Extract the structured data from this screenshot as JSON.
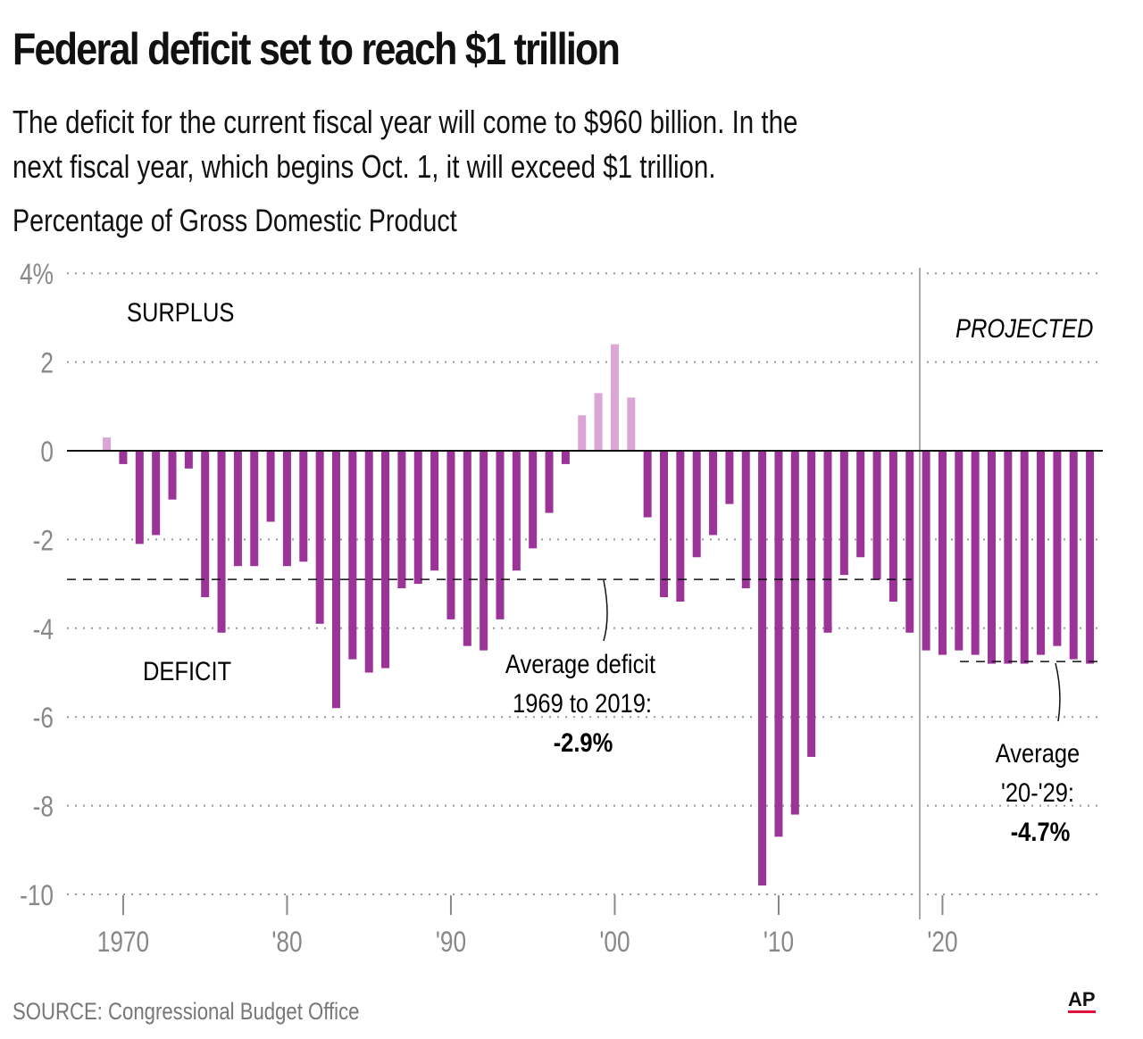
{
  "header": {
    "title": "Federal deficit set to reach $1 trillion",
    "subtitle": "The deficit for the current fiscal year will come to $960 billion. In the next fiscal year, which begins Oct. 1, it will exceed $1 trillion.",
    "unit_label": "Percentage of Gross Domestic Product"
  },
  "footer": {
    "source": "SOURCE: Congressional Budget Office",
    "logo": "AP"
  },
  "chart_data": {
    "type": "bar",
    "title": "Federal deficit set to reach $1 trillion",
    "ylabel": "Percentage of Gross Domestic Product",
    "ylim": [
      -10,
      4
    ],
    "yticks": [
      4,
      2,
      0,
      -2,
      -4,
      -6,
      -8,
      -10
    ],
    "ytick_labels": [
      "4%",
      "2",
      "0",
      "-2",
      "-4",
      "-6",
      "-8",
      "-10"
    ],
    "xticks": [
      1970,
      1980,
      1990,
      2000,
      2010,
      2020
    ],
    "xtick_labels": [
      "1970",
      "'80",
      "'90",
      "'00",
      "'10",
      "'20"
    ],
    "grid": true,
    "projected_from": 2019,
    "colors": {
      "deficit": "#9b3399",
      "surplus": "#dba6d6",
      "axis": "#111111",
      "grid": "#999999",
      "divider": "#aaaaaa"
    },
    "years": [
      1969,
      1970,
      1971,
      1972,
      1973,
      1974,
      1975,
      1976,
      1977,
      1978,
      1979,
      1980,
      1981,
      1982,
      1983,
      1984,
      1985,
      1986,
      1987,
      1988,
      1989,
      1990,
      1991,
      1992,
      1993,
      1994,
      1995,
      1996,
      1997,
      1998,
      1999,
      2000,
      2001,
      2002,
      2003,
      2004,
      2005,
      2006,
      2007,
      2008,
      2009,
      2010,
      2011,
      2012,
      2013,
      2014,
      2015,
      2016,
      2017,
      2018,
      2019,
      2020,
      2021,
      2022,
      2023,
      2024,
      2025,
      2026,
      2027,
      2028,
      2029
    ],
    "values": [
      0.3,
      -0.3,
      -2.1,
      -1.9,
      -1.1,
      -0.4,
      -3.3,
      -4.1,
      -2.6,
      -2.6,
      -1.6,
      -2.6,
      -2.5,
      -3.9,
      -5.8,
      -4.7,
      -5.0,
      -4.9,
      -3.1,
      -3.0,
      -2.7,
      -3.8,
      -4.4,
      -4.5,
      -3.8,
      -2.7,
      -2.2,
      -1.4,
      -0.3,
      0.8,
      1.3,
      2.4,
      1.2,
      -1.5,
      -3.3,
      -3.4,
      -2.4,
      -1.9,
      -1.2,
      -3.1,
      -9.8,
      -8.7,
      -8.2,
      -6.9,
      -4.1,
      -2.8,
      -2.4,
      -2.9,
      -3.4,
      -4.1,
      -4.5,
      -4.6,
      -4.5,
      -4.6,
      -4.8,
      -4.8,
      -4.8,
      -4.6,
      -4.4,
      -4.7,
      -4.8
    ],
    "annotations": {
      "surplus_label": "SURPLUS",
      "deficit_label": "DEFICIT",
      "projected_label": "PROJECTED",
      "avg_hist": {
        "value": -2.9,
        "line1": "Average deficit",
        "line2": "1969 to 2019:",
        "value_label": "-2.9%"
      },
      "avg_proj": {
        "value": -4.7,
        "line1": "Average",
        "line2": "'20-'29:",
        "value_label": "-4.7%"
      }
    }
  }
}
